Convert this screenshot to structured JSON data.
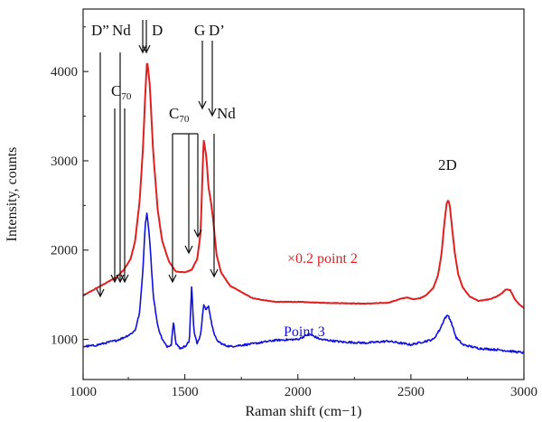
{
  "chart_data": {
    "type": "line",
    "xlabel": "Raman shift (cm−1)",
    "ylabel": "Intensity, counts",
    "xlim": [
      1050,
      3000
    ],
    "ylim": [
      550,
      4700
    ],
    "x_ticks": [
      1000,
      1500,
      2000,
      2500,
      3000
    ],
    "y_ticks": [
      1000,
      2000,
      3000,
      4000
    ],
    "grid": false,
    "series": [
      {
        "name": "×0.2 point 2",
        "color": "#e02020",
        "x": [
          1050,
          1100,
          1150,
          1200,
          1230,
          1260,
          1280,
          1300,
          1315,
          1325,
          1333,
          1345,
          1360,
          1380,
          1400,
          1430,
          1460,
          1500,
          1530,
          1555,
          1570,
          1583,
          1595,
          1605,
          1615,
          1625,
          1640,
          1660,
          1700,
          1750,
          1800,
          1900,
          2000,
          2100,
          2200,
          2300,
          2400,
          2450,
          2480,
          2510,
          2540,
          2570,
          2600,
          2620,
          2635,
          2648,
          2658,
          2665,
          2672,
          2682,
          2695,
          2710,
          2730,
          2760,
          2800,
          2850,
          2880,
          2900,
          2920,
          2940,
          2960,
          2980,
          3000
        ],
        "y": [
          1490,
          1560,
          1630,
          1700,
          1780,
          1900,
          2100,
          2550,
          3150,
          3750,
          4130,
          3850,
          3100,
          2450,
          2100,
          1870,
          1760,
          1750,
          1780,
          1900,
          2200,
          3240,
          3050,
          2700,
          2550,
          2350,
          1950,
          1750,
          1600,
          1530,
          1460,
          1420,
          1420,
          1410,
          1405,
          1400,
          1410,
          1450,
          1470,
          1450,
          1460,
          1500,
          1580,
          1720,
          1950,
          2300,
          2520,
          2560,
          2500,
          2250,
          1950,
          1720,
          1580,
          1480,
          1430,
          1450,
          1480,
          1510,
          1560,
          1550,
          1450,
          1390,
          1350
        ]
      },
      {
        "name": "Point 3",
        "color": "#1010e0",
        "x": [
          1050,
          1100,
          1150,
          1200,
          1230,
          1260,
          1280,
          1300,
          1315,
          1325,
          1333,
          1345,
          1360,
          1380,
          1400,
          1420,
          1440,
          1450,
          1460,
          1480,
          1500,
          1520,
          1530,
          1540,
          1555,
          1570,
          1583,
          1595,
          1605,
          1620,
          1640,
          1670,
          1700,
          1800,
          1900,
          2000,
          2050,
          2100,
          2200,
          2300,
          2400,
          2500,
          2550,
          2600,
          2630,
          2650,
          2665,
          2680,
          2700,
          2730,
          2800,
          2900,
          3000
        ],
        "y": [
          920,
          930,
          960,
          990,
          1020,
          1060,
          1100,
          1300,
          1800,
          2300,
          2420,
          2100,
          1500,
          1150,
          1000,
          920,
          940,
          1220,
          950,
          900,
          920,
          980,
          1590,
          1100,
          950,
          1050,
          1390,
          1330,
          1380,
          1150,
          990,
          940,
          920,
          950,
          990,
          1000,
          1060,
          1000,
          970,
          960,
          980,
          940,
          970,
          1000,
          1120,
          1240,
          1270,
          1180,
          1020,
          940,
          900,
          880,
          850
        ]
      }
    ],
    "annotations": {
      "d2": "D”",
      "nd_left": "Nd",
      "d": "D",
      "c70_upper_main": "C",
      "c70_upper_sub": "70",
      "c70_lower_main": "C",
      "c70_lower_sub": "70",
      "g": "G",
      "d_prime": "D’",
      "nd_right": "Nd",
      "two_d": "2D",
      "red_label": "×0.2 point 2",
      "blue_label": "Point 3"
    }
  }
}
